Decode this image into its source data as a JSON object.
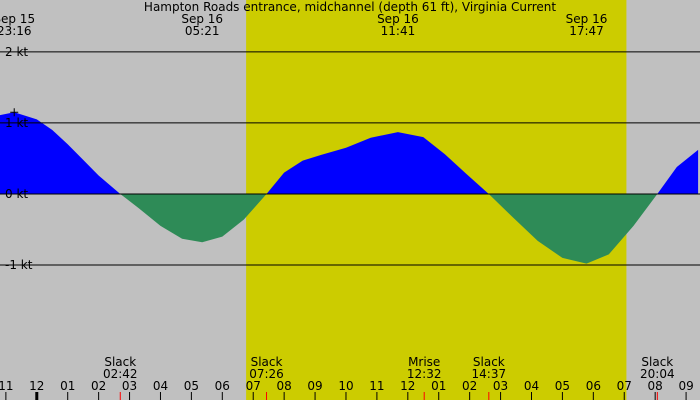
{
  "chart_data": {
    "type": "area",
    "title": "Hampton Roads entrance, midchannel (depth 61 ft), Virginia Current",
    "x": [
      -1.19,
      -0.73,
      0,
      0.5,
      1,
      1.5,
      2,
      2.7,
      3.3,
      4,
      4.7,
      5.35,
      6,
      6.7,
      7.43,
      8,
      8.6,
      9.2,
      10,
      10.8,
      11.68,
      12.5,
      13.2,
      13.9,
      14.62,
      15.4,
      16.2,
      17,
      17.78,
      18.5,
      19.3,
      20.07,
      20.7,
      21.39
    ],
    "values": [
      1.11,
      1.15,
      1.05,
      0.9,
      0.7,
      0.48,
      0.26,
      0,
      -0.2,
      -0.45,
      -0.63,
      -0.68,
      -0.6,
      -0.36,
      0,
      0.3,
      0.47,
      0.55,
      0.65,
      0.79,
      0.87,
      0.8,
      0.56,
      0.28,
      0,
      -0.33,
      -0.66,
      -0.9,
      -0.98,
      -0.85,
      -0.45,
      0,
      0.38,
      0.62
    ],
    "flood_color": "#0000ff",
    "ebb_color": "#2e8b57",
    "night_color": "#c0c0c0",
    "day_color": "#cccc00",
    "daylight": [
      6.77,
      19.07
    ],
    "xlim": [
      -1.19,
      21.45
    ],
    "ylim": [
      -2.9,
      2.73
    ],
    "yticks": [
      {
        "value": 2,
        "label": "2 kt"
      },
      {
        "value": 1,
        "label": "1 kt"
      },
      {
        "value": 0,
        "label": "0 kt"
      },
      {
        "value": -1,
        "label": "-1 kt"
      }
    ],
    "xticks": [
      {
        "value": -1,
        "label": "11"
      },
      {
        "value": 0,
        "label": "12"
      },
      {
        "value": 1,
        "label": "01"
      },
      {
        "value": 2,
        "label": "02"
      },
      {
        "value": 3,
        "label": "03"
      },
      {
        "value": 4,
        "label": "04"
      },
      {
        "value": 5,
        "label": "05"
      },
      {
        "value": 6,
        "label": "06"
      },
      {
        "value": 7,
        "label": "07"
      },
      {
        "value": 8,
        "label": "08"
      },
      {
        "value": 9,
        "label": "09"
      },
      {
        "value": 10,
        "label": "10"
      },
      {
        "value": 11,
        "label": "11"
      },
      {
        "value": 12,
        "label": "12"
      },
      {
        "value": 13,
        "label": "01"
      },
      {
        "value": 14,
        "label": "02"
      },
      {
        "value": 15,
        "label": "03"
      },
      {
        "value": 16,
        "label": "04"
      },
      {
        "value": 17,
        "label": "05"
      },
      {
        "value": 18,
        "label": "06"
      },
      {
        "value": 19,
        "label": "07"
      },
      {
        "value": 20,
        "label": "08"
      },
      {
        "value": 21,
        "label": "09"
      }
    ],
    "extremes": [
      {
        "date": "Sep 15",
        "time": "23:16",
        "x": -0.73
      },
      {
        "date": "Sep 16",
        "time": "05:21",
        "x": 5.35
      },
      {
        "date": "Sep 16",
        "time": "11:41",
        "x": 11.68
      },
      {
        "date": "Sep 16",
        "time": "17:47",
        "x": 17.78
      }
    ],
    "events": [
      {
        "label": "Slack",
        "time": "02:42",
        "x": 2.7
      },
      {
        "label": "Slack",
        "time": "07:26",
        "x": 7.43
      },
      {
        "label": "Mrise",
        "time": "12:32",
        "x": 12.53
      },
      {
        "label": "Slack",
        "time": "14:37",
        "x": 14.62
      },
      {
        "label": "Slack",
        "time": "20:04",
        "x": 20.07
      }
    ]
  }
}
